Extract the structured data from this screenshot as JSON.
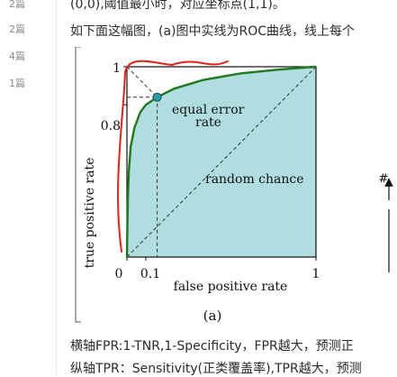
{
  "sidebar": {
    "items": [
      {
        "label": "2篇"
      },
      {
        "label": "2篇"
      },
      {
        "label": "4篇"
      },
      {
        "label": "1篇"
      }
    ]
  },
  "article": {
    "line_top": "(0,0),阈值最小时，对应坐标点(1,1)。",
    "line_intro": "如下面这幅图，(a)图中实线为ROC曲线，线上每个",
    "line_fpr": "横轴FPR:1-TNR,1-Specificity，FPR越大，预测正",
    "line_tpr": "纵轴TPR：Sensitivity(正类覆盖率),TPR越大，预测"
  },
  "chart_data": {
    "type": "area",
    "ylabel": "true positive rate",
    "xlabel": "false positive rate",
    "caption": "(a)",
    "xlim": [
      0,
      1
    ],
    "ylim": [
      0,
      1
    ],
    "x_ticks": [
      "0",
      "0.1",
      "1"
    ],
    "y_ticks": [
      "0.8",
      "1"
    ],
    "annotations": {
      "equal_error_line1": "equal error",
      "equal_error_line2": "rate",
      "random_chance": "random chance"
    },
    "equal_error_point": {
      "x": 0.16,
      "y": 0.84
    },
    "roc_curve": {
      "x": [
        0.0,
        0.005,
        0.01,
        0.02,
        0.04,
        0.07,
        0.1,
        0.16,
        0.25,
        0.4,
        0.6,
        0.8,
        1.0
      ],
      "y": [
        0.0,
        0.3,
        0.45,
        0.58,
        0.68,
        0.76,
        0.8,
        0.84,
        0.885,
        0.93,
        0.965,
        0.985,
        1.0
      ]
    },
    "random_chance_line": {
      "x": [
        0,
        1
      ],
      "y": [
        0,
        1
      ]
    },
    "colors": {
      "roc_line": "#1f7a1f",
      "area_fill": "#b0dde0",
      "point": "#2a9aa6",
      "handdrawn": "#e0221c"
    },
    "partial_right_label": "#"
  }
}
